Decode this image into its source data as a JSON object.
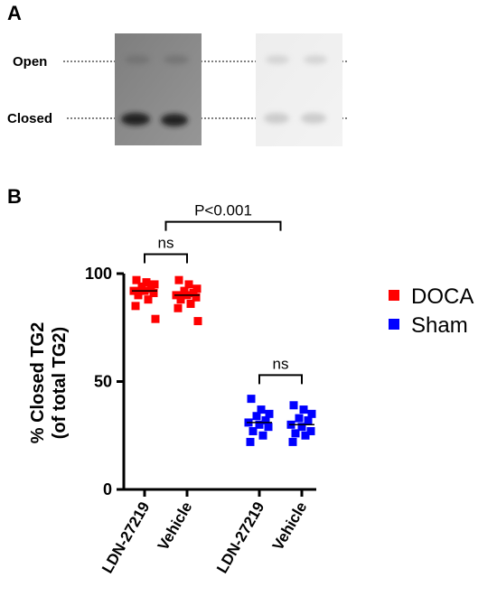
{
  "panel_a": {
    "label": "A",
    "band_labels": [
      "Open",
      "Closed"
    ]
  },
  "chart_data": {
    "type": "scatter",
    "panel_label": "B",
    "title": "",
    "ylabel_line1": "% Closed TG2",
    "ylabel_line2": "(of total TG2)",
    "ylim": [
      0,
      100
    ],
    "yticks": [
      0,
      50,
      100
    ],
    "categories": [
      "LDN-27219",
      "Vehicle",
      "LDN-27219",
      "Vehicle"
    ],
    "legend": {
      "position": "right",
      "entries": [
        {
          "name": "DOCA",
          "color": "#ff0000"
        },
        {
          "name": "Sham",
          "color": "#0000ff"
        }
      ]
    },
    "series": [
      {
        "name": "DOCA",
        "color": "#ff0000",
        "groups": [
          {
            "category_index": 0,
            "mean": 92,
            "values": [
              97,
              96,
              95,
              94,
              93,
              92,
              92,
              91,
              90,
              88,
              85,
              79
            ]
          },
          {
            "category_index": 1,
            "mean": 90,
            "values": [
              97,
              95,
              93,
              92,
              91,
              90,
              90,
              89,
              88,
              86,
              84,
              78
            ]
          }
        ]
      },
      {
        "name": "Sham",
        "color": "#0000ff",
        "groups": [
          {
            "category_index": 2,
            "mean": 31,
            "values": [
              42,
              37,
              35,
              34,
              32,
              31,
              30,
              29,
              27,
              25,
              22
            ]
          },
          {
            "category_index": 3,
            "mean": 30,
            "values": [
              39,
              37,
              35,
              33,
              32,
              30,
              29,
              27,
              26,
              25,
              22
            ]
          }
        ]
      }
    ],
    "annotations": [
      {
        "text": "ns",
        "from": 0,
        "to": 1,
        "y": 109
      },
      {
        "text": "ns",
        "from": 2,
        "to": 3,
        "y": 53
      },
      {
        "text": "P<0.001",
        "from": 0.5,
        "to": 2.5,
        "y": 124
      }
    ]
  }
}
